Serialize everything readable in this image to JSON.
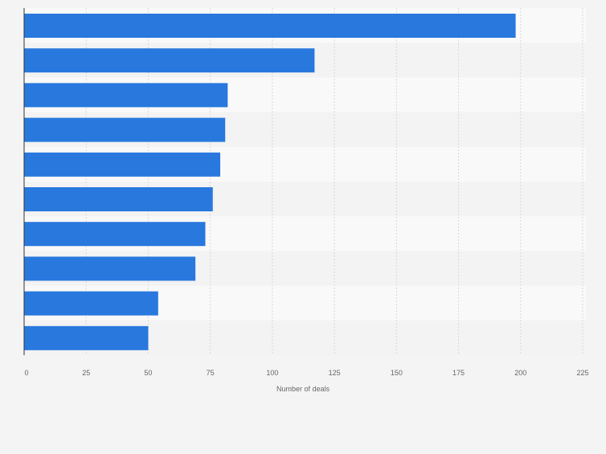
{
  "chart_data": {
    "type": "bar",
    "orientation": "horizontal",
    "title": "",
    "xlabel": "Number of deals",
    "ylabel": "",
    "categories": [
      "",
      "",
      "",
      "",
      "",
      "",
      "",
      "",
      "",
      ""
    ],
    "values": [
      198,
      117,
      82,
      81,
      79,
      76,
      73,
      69,
      54,
      50
    ],
    "xlim": [
      0,
      225
    ],
    "xticks": [
      0,
      25,
      50,
      75,
      100,
      125,
      150,
      175,
      200,
      225
    ],
    "grid": true,
    "legend": "none",
    "colors": {
      "bar": "#2878de",
      "background": "#f4f4f4",
      "band_light": "#f9f9f9",
      "band_dark": "#f3f3f3",
      "grid": "#d8d8d8",
      "axis": "#333333",
      "tick_text": "#666666"
    }
  }
}
